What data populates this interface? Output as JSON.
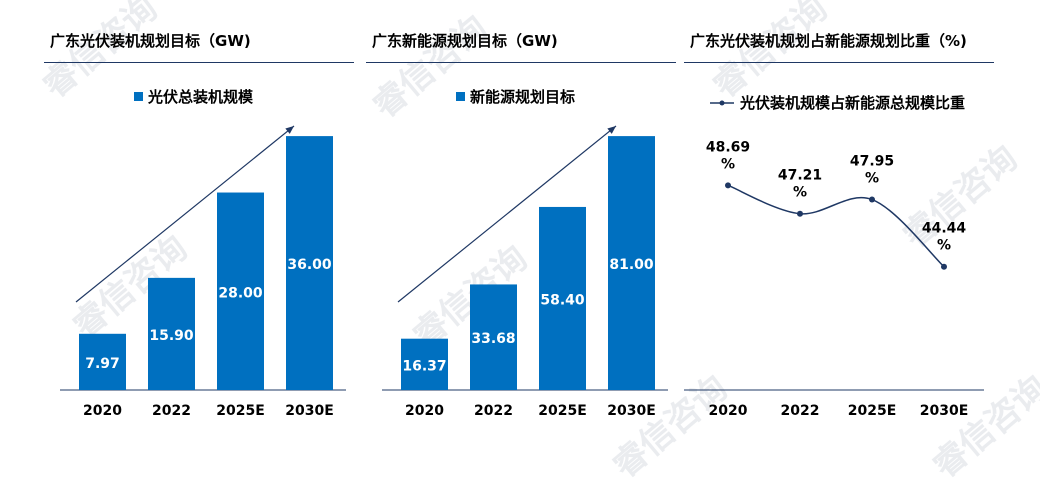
{
  "watermark": "睿信咨询",
  "colors": {
    "bar": "#0070c0",
    "line": "#1f3864",
    "axis": "#1f3864",
    "arrow": "#1f3864"
  },
  "chart_data": [
    {
      "type": "bar",
      "title": "广东光伏装机规划目标（GW)",
      "legend": "光伏总装机规模",
      "categories": [
        "2020",
        "2022",
        "2025E",
        "2030E"
      ],
      "values": [
        7.97,
        15.9,
        28.0,
        36.0
      ],
      "labels": [
        "7.97",
        "15.90",
        "28.00",
        "36.00"
      ],
      "ylim": [
        0,
        38
      ]
    },
    {
      "type": "bar",
      "title": "广东新能源规划目标（GW)",
      "legend": "新能源规划目标",
      "categories": [
        "2020",
        "2022",
        "2025E",
        "2030E"
      ],
      "values": [
        16.37,
        33.68,
        58.4,
        81.0
      ],
      "labels": [
        "16.37",
        "33.68",
        "58.40",
        "81.00"
      ],
      "ylim": [
        0,
        85.5
      ]
    },
    {
      "type": "line",
      "title": "广东光伏装机规划占新能源规划比重（%)",
      "legend": "光伏装机规模占新能源总规模比重",
      "categories": [
        "2020",
        "2022",
        "2025E",
        "2030E"
      ],
      "values": [
        48.69,
        47.21,
        47.95,
        44.44
      ],
      "labels": [
        "48.69\n%",
        "47.21\n%",
        "47.95\n%",
        "44.44\n%"
      ],
      "ylim": [
        38,
        52
      ]
    }
  ]
}
